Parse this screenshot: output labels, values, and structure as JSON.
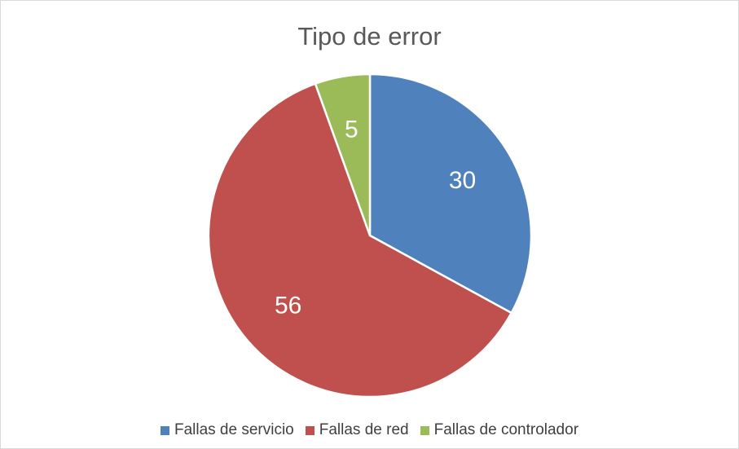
{
  "chart_data": {
    "type": "pie",
    "title": "Tipo de error",
    "categories": [
      "Fallas de servicio",
      "Fallas de red",
      "Fallas de controlador"
    ],
    "values": [
      30,
      56,
      5
    ],
    "colors": [
      "#4f81bd",
      "#c0504d",
      "#9bbb59"
    ],
    "data_labels": [
      "30",
      "56",
      "5"
    ],
    "legend_position": "bottom",
    "start_angle_deg": 0,
    "direction": "clockwise"
  }
}
